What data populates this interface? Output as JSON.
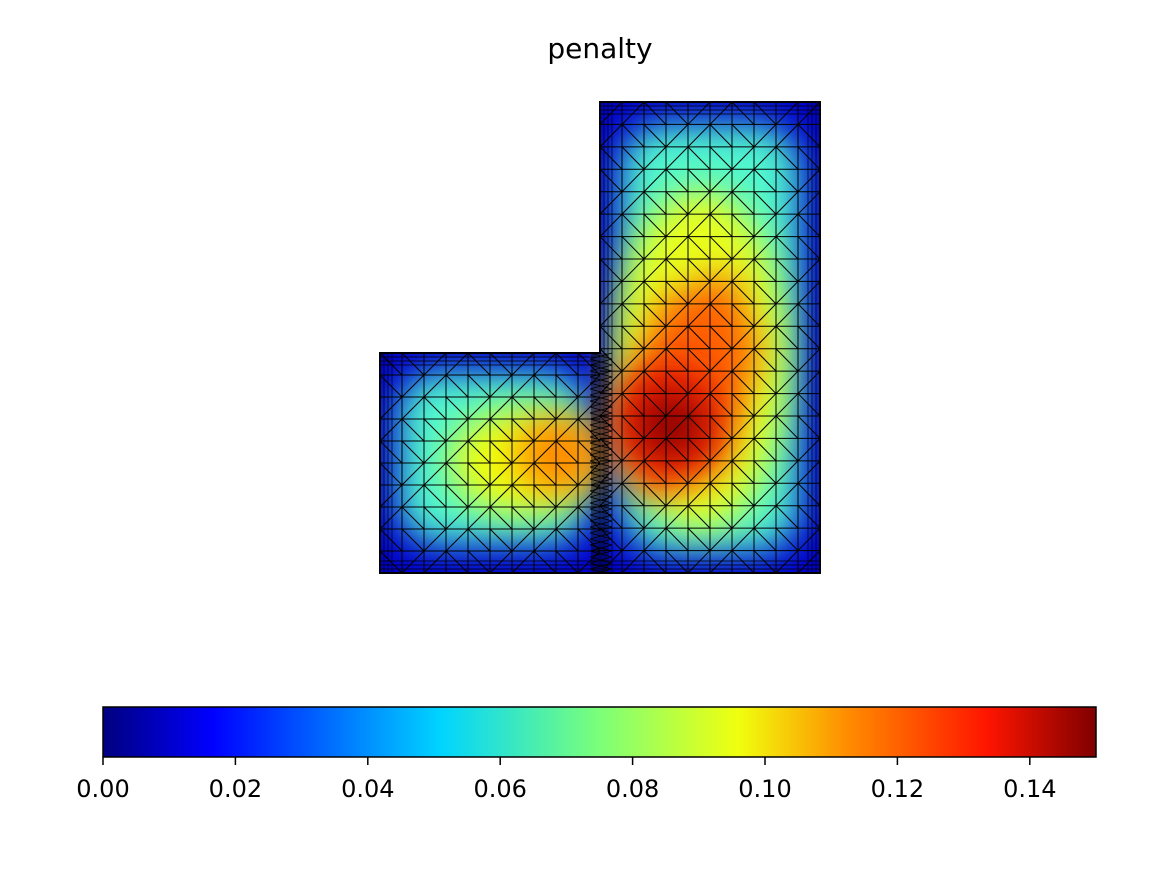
{
  "chart_data": {
    "type": "heatmap",
    "title": "penalty",
    "plot": "filled triangular-mesh contour over an L-shaped domain",
    "domain_shape": "L-shape: left square (lower-left) plus tall right rectangle",
    "mesh_edges_visible": true,
    "colormap": "jet",
    "colorbar": {
      "orientation": "horizontal",
      "placement": "bottom",
      "range": [
        0.0,
        0.15
      ],
      "ticks": [
        0.0,
        0.02,
        0.04,
        0.06,
        0.08,
        0.1,
        0.12,
        0.14
      ],
      "tick_labels": [
        "0.00",
        "0.02",
        "0.04",
        "0.06",
        "0.08",
        "0.10",
        "0.12",
        "0.14"
      ]
    },
    "field_summary": {
      "min": 0.0,
      "max": 0.15,
      "boundary_value": 0.0,
      "peak_location": "near the inner corner of the L, inside the right rectangle"
    },
    "axes_visible": false
  }
}
